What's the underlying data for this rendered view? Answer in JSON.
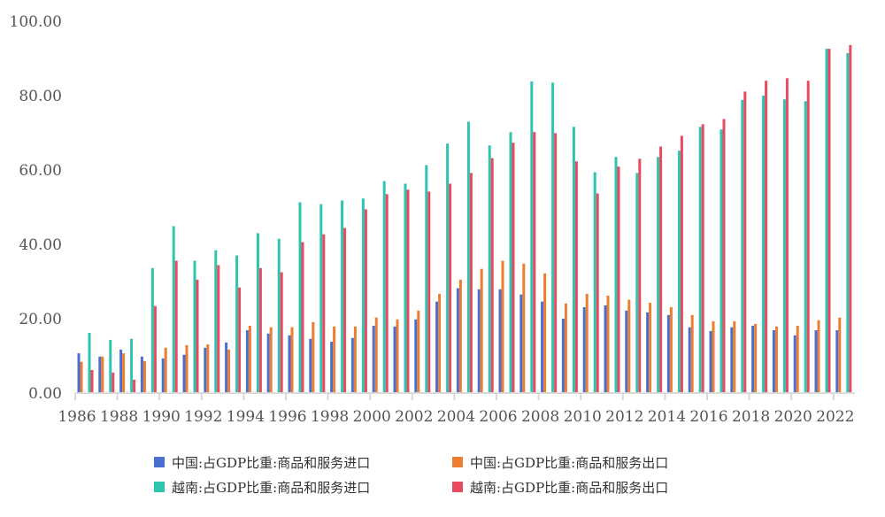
{
  "chart_data": {
    "type": "bar",
    "title": "",
    "xlabel": "",
    "ylabel": "",
    "ylim": [
      0,
      100
    ],
    "yticks": [
      "0.00",
      "20.00",
      "40.00",
      "60.00",
      "80.00",
      "100.00"
    ],
    "ytick_values": [
      0,
      20,
      40,
      60,
      80,
      100
    ],
    "grid": false,
    "legend_position": "bottom",
    "categories": [
      "1986",
      "1987",
      "1988",
      "1989",
      "1990",
      "1991",
      "1992",
      "1993",
      "1994",
      "1995",
      "1996",
      "1997",
      "1998",
      "1999",
      "2000",
      "2001",
      "2002",
      "2003",
      "2004",
      "2005",
      "2006",
      "2007",
      "2008",
      "2009",
      "2010",
      "2011",
      "2012",
      "2013",
      "2014",
      "2015",
      "2016",
      "2017",
      "2018",
      "2019",
      "2020",
      "2021",
      "2022"
    ],
    "xtick_labels": [
      "1986",
      "1988",
      "1990",
      "1992",
      "1994",
      "1996",
      "1998",
      "2000",
      "2002",
      "2004",
      "2006",
      "2008",
      "2010",
      "2012",
      "2014",
      "2016",
      "2018",
      "2020",
      "2022"
    ],
    "series": [
      {
        "name": "中国:占GDP比重:商品和服务进口",
        "color": "#4A6FD1",
        "values": [
          10.7,
          9.8,
          11.7,
          9.8,
          9.3,
          10.3,
          12.2,
          13.6,
          16.9,
          16.0,
          15.5,
          14.6,
          13.8,
          14.8,
          18.1,
          17.9,
          19.8,
          24.6,
          28.2,
          27.9,
          27.9,
          26.5,
          24.6,
          20.0,
          23.1,
          23.6,
          22.2,
          21.7,
          21.0,
          17.7,
          16.7,
          17.7,
          18.1,
          16.9,
          15.5,
          16.9,
          16.9
        ]
      },
      {
        "name": "中国:占GDP比重:商品和服务出口",
        "color": "#ED7D31",
        "values": [
          8.4,
          9.8,
          10.7,
          8.6,
          12.2,
          12.9,
          13.1,
          11.7,
          18.1,
          17.7,
          17.7,
          19.1,
          17.9,
          17.9,
          20.3,
          19.8,
          22.2,
          26.7,
          30.5,
          33.4,
          35.6,
          34.8,
          32.2,
          24.1,
          26.7,
          26.2,
          25.1,
          24.3,
          23.1,
          21.0,
          19.3,
          19.3,
          18.6,
          17.9,
          18.1,
          19.6,
          20.3
        ]
      },
      {
        "name": "越南:占GDP比重:商品和服务进口",
        "color": "#2EC4B0",
        "values": [
          16.2,
          14.3,
          14.6,
          33.6,
          44.9,
          35.6,
          38.4,
          37.0,
          43.0,
          41.5,
          51.3,
          50.8,
          51.8,
          52.3,
          57.0,
          56.3,
          61.3,
          67.1,
          73.0,
          66.6,
          70.2,
          83.8,
          83.5,
          71.6,
          59.4,
          63.5,
          59.2,
          63.5,
          65.2,
          71.6,
          70.9,
          78.8,
          80.0,
          79.0,
          78.5,
          92.6,
          91.4
        ]
      },
      {
        "name": "越南:占GDP比重:商品和服务出口",
        "color": "#E84A5F",
        "values": [
          6.2,
          5.5,
          3.6,
          23.4,
          35.6,
          30.5,
          34.4,
          28.4,
          33.6,
          32.5,
          40.6,
          42.7,
          44.4,
          49.4,
          53.5,
          54.7,
          54.2,
          56.3,
          59.2,
          63.2,
          67.3,
          70.2,
          69.9,
          62.3,
          53.7,
          60.9,
          63.0,
          66.3,
          69.2,
          72.3,
          73.7,
          81.1,
          84.0,
          84.7,
          84.0,
          92.6,
          93.6
        ]
      }
    ]
  }
}
